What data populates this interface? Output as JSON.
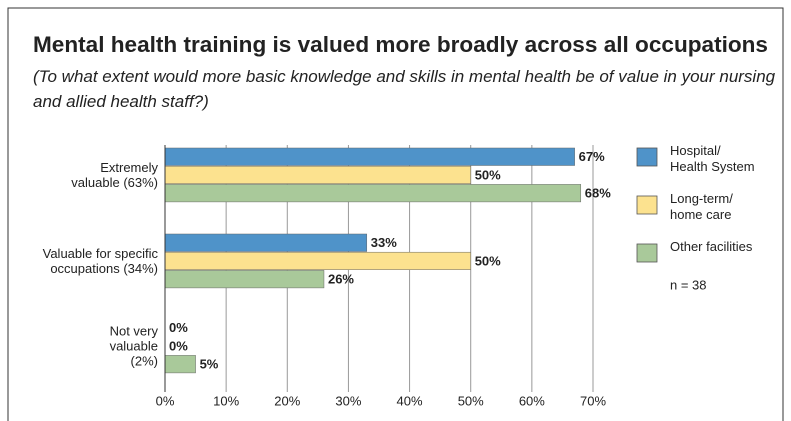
{
  "chart_data": {
    "type": "hbar",
    "title": "Mental health training is valued more broadly across all occupations",
    "subtitle": "(To what extent would more basic knowledge and skills in mental health be of value in your nursing and allied health staff?)",
    "categories": [
      "Extremely valuable (63%)",
      "Valuable for specific occupations (34%)",
      "Not very valuable (2%)"
    ],
    "series": [
      {
        "name": "Hospital/ Health System",
        "color": "#4f93c9",
        "values": [
          67,
          33,
          0
        ],
        "value_labels": [
          "67%",
          "33%",
          "0%"
        ]
      },
      {
        "name": "Long-term/ home care",
        "color": "#fce28f",
        "values": [
          50,
          50,
          0
        ],
        "value_labels": [
          "50%",
          "50%",
          "0%"
        ]
      },
      {
        "name": "Other facilities",
        "color": "#a9c99a",
        "values": [
          68,
          26,
          5
        ],
        "value_labels": [
          "68%",
          "26%",
          "5%"
        ]
      }
    ],
    "xlim": [
      0,
      70
    ],
    "xticks": [
      {
        "value": 0,
        "label": "0%"
      },
      {
        "value": 10,
        "label": "10%"
      },
      {
        "value": 20,
        "label": "20%"
      },
      {
        "value": 30,
        "label": "30%"
      },
      {
        "value": 40,
        "label": "40%"
      },
      {
        "value": 50,
        "label": "50%"
      },
      {
        "value": 60,
        "label": "60%"
      },
      {
        "value": 70,
        "label": "70%"
      }
    ],
    "grid": true,
    "legend": "right",
    "annotation": "n = 38"
  }
}
